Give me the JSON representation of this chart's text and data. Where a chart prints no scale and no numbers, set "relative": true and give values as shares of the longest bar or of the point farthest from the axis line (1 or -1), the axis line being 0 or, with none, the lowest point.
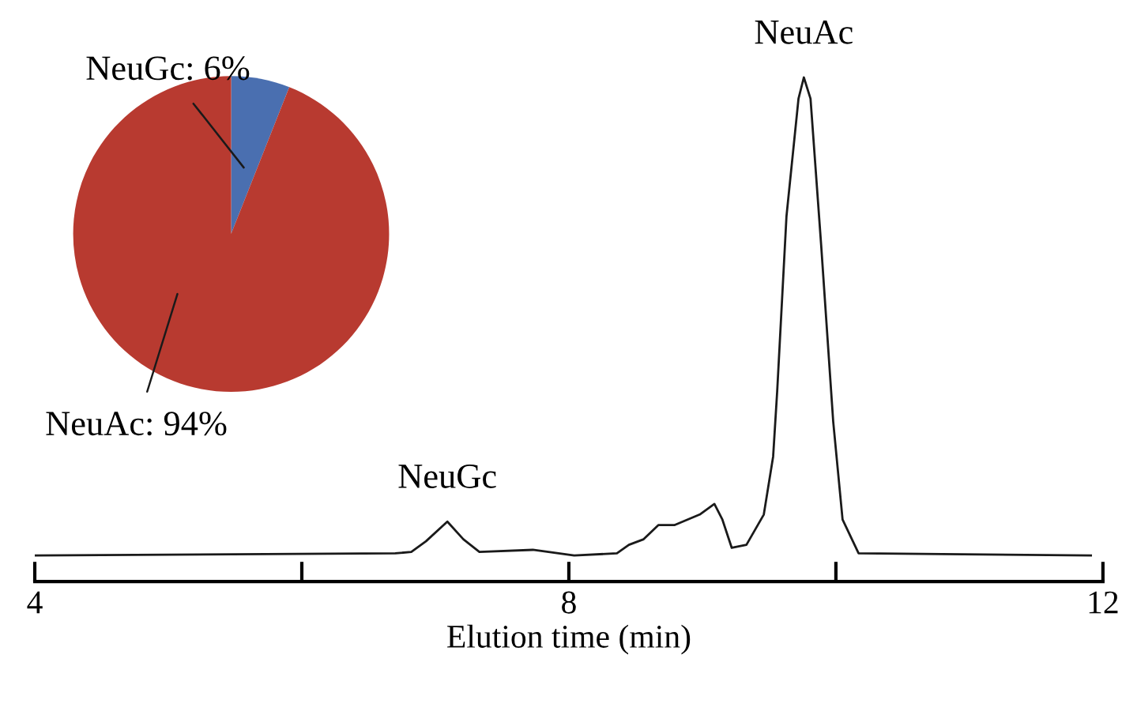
{
  "chart_data": [
    {
      "type": "line",
      "relative": true,
      "xlabel": "Elution time (min)",
      "xlim": [
        4,
        12
      ],
      "xticks": [
        4,
        {
          "value": 6,
          "label": null
        },
        8,
        {
          "value": 10,
          "label": null
        },
        12
      ],
      "tick_labels": "x",
      "grid": false,
      "legend": false,
      "marker": "none",
      "line_style": "solid",
      "x": [
        4.0,
        6.7,
        6.82,
        6.93,
        7.09,
        7.21,
        7.33,
        7.73,
        8.04,
        8.36,
        8.45,
        8.56,
        8.67,
        8.79,
        8.98,
        9.09,
        9.15,
        9.22,
        9.33,
        9.46,
        9.53,
        9.56,
        9.63,
        9.72,
        9.76,
        9.81,
        9.89,
        9.98,
        10.05,
        10.17,
        11.91
      ],
      "series": [
        {
          "color": "#1a1a1a",
          "values": [
            0.052,
            0.056,
            0.059,
            0.08,
            0.119,
            0.084,
            0.059,
            0.063,
            0.052,
            0.056,
            0.073,
            0.084,
            0.112,
            0.112,
            0.133,
            0.154,
            0.123,
            0.067,
            0.073,
            0.133,
            0.248,
            0.376,
            0.725,
            0.958,
            1,
            0.958,
            0.666,
            0.317,
            0.123,
            0.056,
            0.052
          ]
        }
      ],
      "annotations": [
        {
          "text": "NeuGc",
          "x": 7.09,
          "y": 0.119
        },
        {
          "text": "NeuAc",
          "x": 9.76,
          "y": 1
        }
      ]
    },
    {
      "type": "pie",
      "categories": [
        "NeuGc",
        "NeuAc"
      ],
      "values": [
        6,
        94
      ],
      "value_labels": [
        "6%",
        "94%"
      ],
      "colors": [
        "#4a6fb0",
        "#b83a30"
      ]
    }
  ]
}
